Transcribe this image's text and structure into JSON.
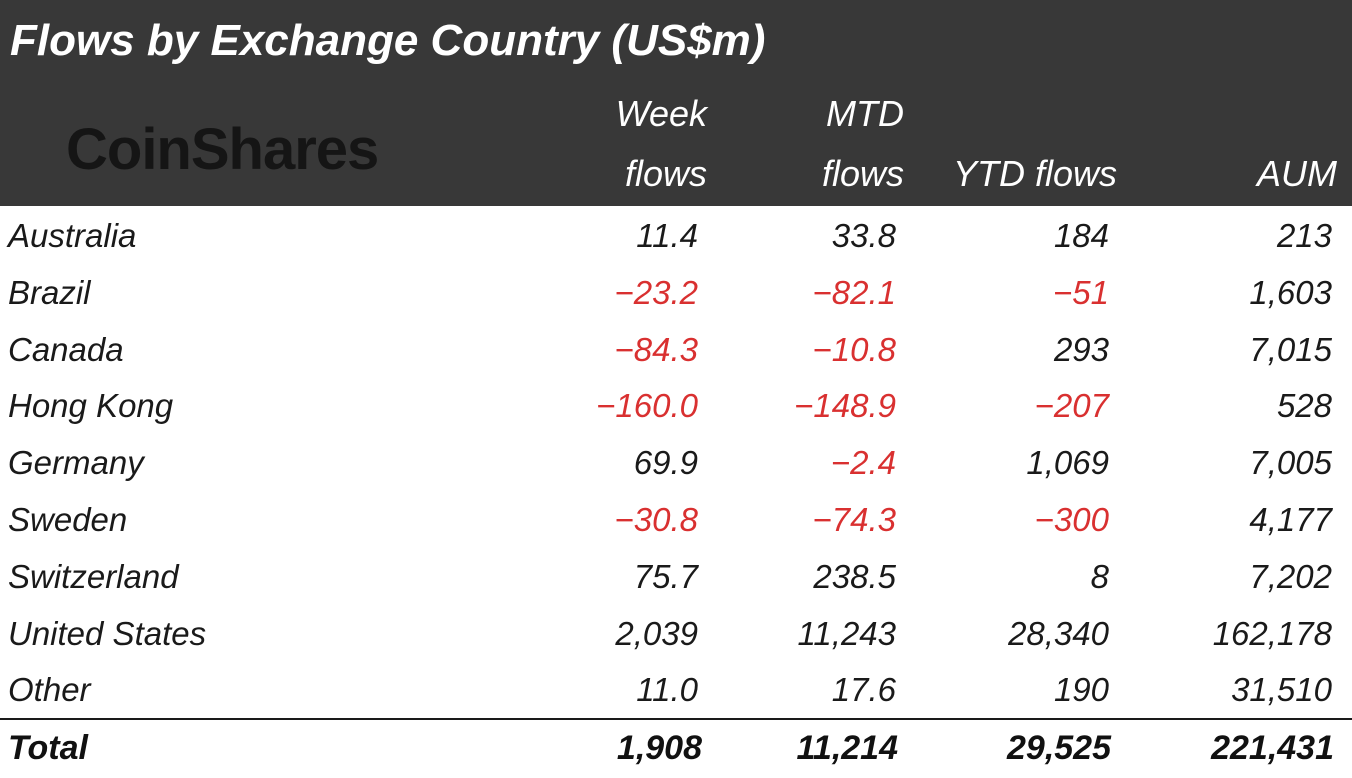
{
  "header": {
    "title": "Flows by Exchange Country (US$m)",
    "logo_text": "CoinShares",
    "background_color": "#383838"
  },
  "chart_data": {
    "type": "table",
    "title": "Flows by Exchange Country (US$m)",
    "columns": [
      {
        "key": "country",
        "line1": "",
        "line2": ""
      },
      {
        "key": "week",
        "line1": "Week",
        "line2": "flows"
      },
      {
        "key": "mtd",
        "line1": "MTD",
        "line2": "flows"
      },
      {
        "key": "ytd",
        "line1": "",
        "line2": "YTD flows"
      },
      {
        "key": "aum",
        "line1": "",
        "line2": "AUM"
      }
    ],
    "rows": [
      {
        "country": "Australia",
        "week": "11.4",
        "mtd": "33.8",
        "ytd": "184",
        "aum": "213"
      },
      {
        "country": "Brazil",
        "week": "-23.2",
        "mtd": "-82.1",
        "ytd": "-51",
        "aum": "1,603"
      },
      {
        "country": "Canada",
        "week": "-84.3",
        "mtd": "-10.8",
        "ytd": "293",
        "aum": "7,015"
      },
      {
        "country": "Hong Kong",
        "week": "-160.0",
        "mtd": "-148.9",
        "ytd": "-207",
        "aum": "528"
      },
      {
        "country": "Germany",
        "week": "69.9",
        "mtd": "-2.4",
        "ytd": "1,069",
        "aum": "7,005"
      },
      {
        "country": "Sweden",
        "week": "-30.8",
        "mtd": "-74.3",
        "ytd": "-300",
        "aum": "4,177"
      },
      {
        "country": "Switzerland",
        "week": "75.7",
        "mtd": "238.5",
        "ytd": "8",
        "aum": "7,202"
      },
      {
        "country": "United States",
        "week": "2,039",
        "mtd": "11,243",
        "ytd": "28,340",
        "aum": "162,178"
      },
      {
        "country": "Other",
        "week": "11.0",
        "mtd": "17.6",
        "ytd": "190",
        "aum": "31,510"
      }
    ],
    "total": {
      "country": "Total",
      "week": "1,908",
      "mtd": "11,214",
      "ytd": "29,525",
      "aum": "221,431"
    },
    "negative_color": "#d93030",
    "positive_color": "#1a1a1a"
  }
}
